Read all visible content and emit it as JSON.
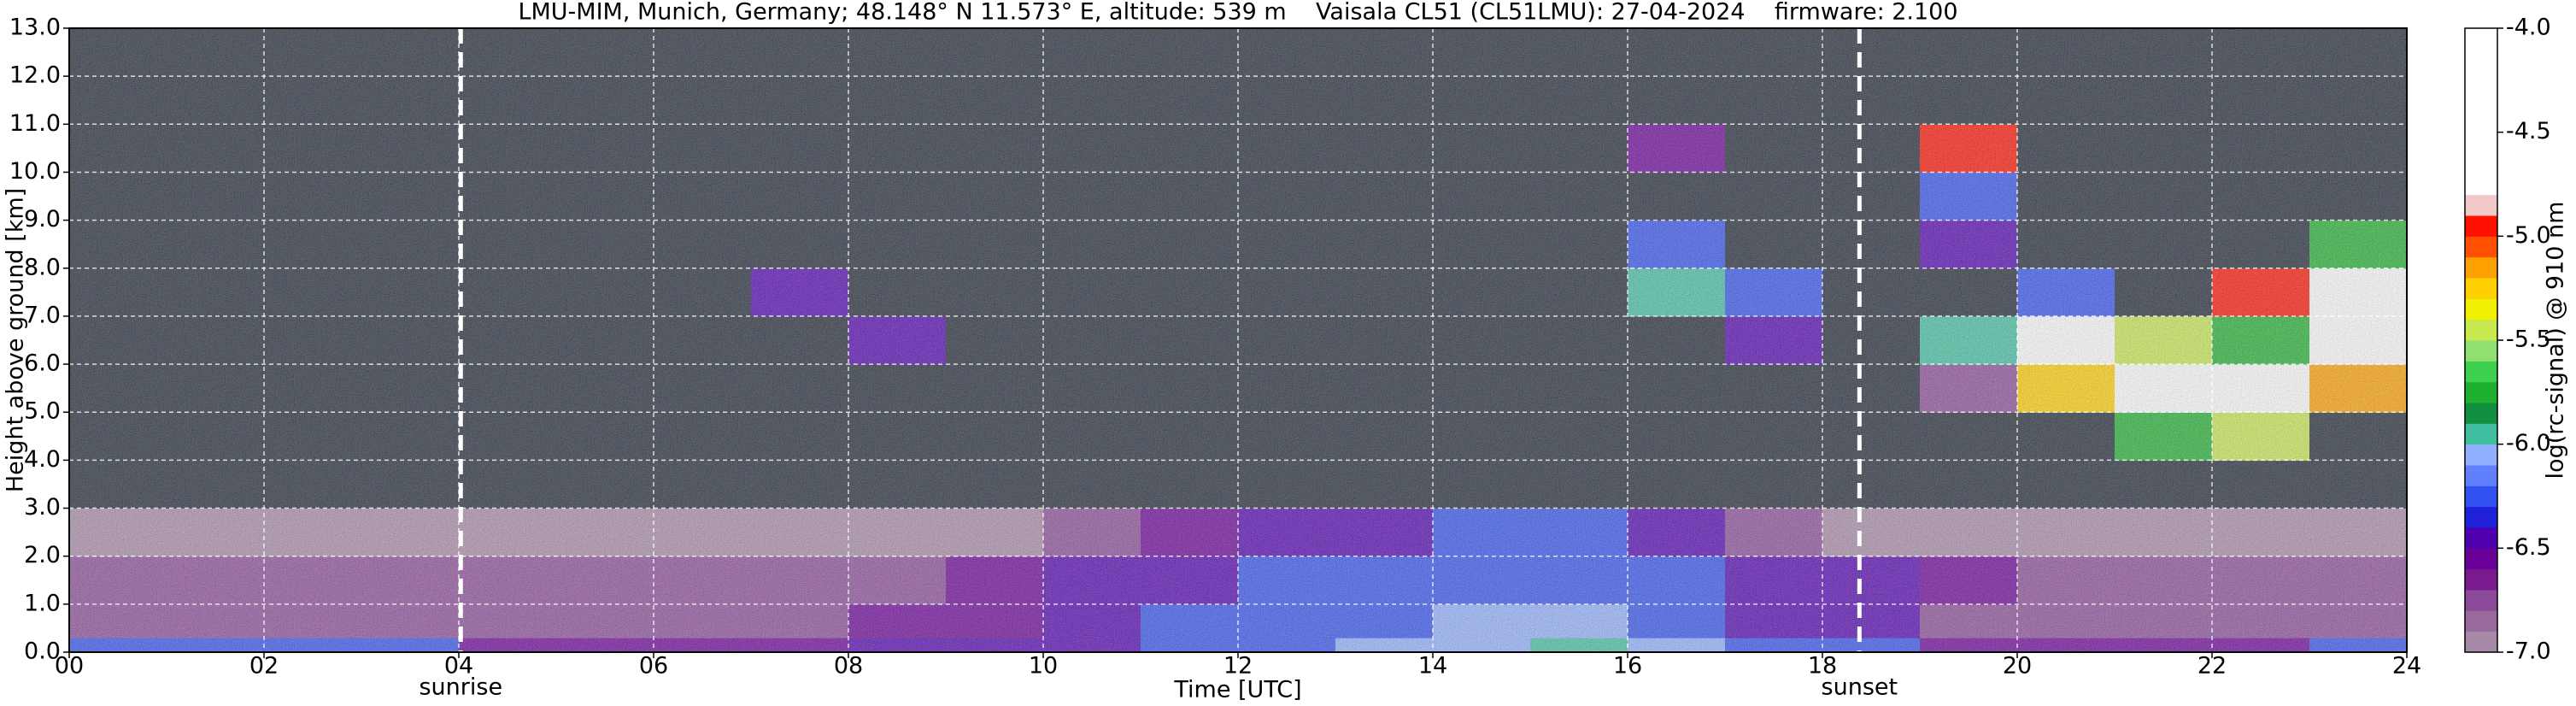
{
  "chart_data": {
    "type": "heatmap",
    "title": "LMU-MIM, Munich, Germany; 48.148° N 11.573° E, altitude: 539 m    Vaisala CL51 (CL51LMU): 27-04-2024    firmware: 2.100",
    "x_label": "Time [UTC]",
    "y_label": "Height above ground [km]",
    "colorbar_label": "log(rc-signal) @ 910 nm",
    "xlim": [
      0,
      24
    ],
    "xticks": [
      {
        "value": 0,
        "label": "00"
      },
      {
        "value": 2,
        "label": "02"
      },
      {
        "value": 4,
        "label": "04"
      },
      {
        "value": 6,
        "label": "06"
      },
      {
        "value": 8,
        "label": "08"
      },
      10,
      12,
      14,
      16,
      18,
      20,
      22,
      24
    ],
    "ylim": [
      0,
      13
    ],
    "yticks": [
      {
        "value": 0,
        "label": "0.0"
      },
      {
        "value": 1,
        "label": "1.0"
      },
      {
        "value": 2,
        "label": "2.0"
      },
      {
        "value": 3,
        "label": "3.0"
      },
      {
        "value": 4,
        "label": "4.0"
      },
      {
        "value": 5,
        "label": "5.0"
      },
      {
        "value": 6,
        "label": "6.0"
      },
      {
        "value": 7,
        "label": "7.0"
      },
      {
        "value": 8,
        "label": "8.0"
      },
      {
        "value": 9,
        "label": "9.0"
      },
      {
        "value": 10,
        "label": "10.0"
      },
      {
        "value": 11,
        "label": "11.0"
      },
      {
        "value": 12,
        "label": "12.0"
      },
      {
        "value": 13,
        "label": "13.0"
      }
    ],
    "clim": [
      -7.0,
      -4.0
    ],
    "cticks": [
      {
        "value": -7.0,
        "label": "-7.0"
      },
      -6.5,
      {
        "value": -6.0,
        "label": "-6.0"
      },
      -5.5,
      {
        "value": -5.0,
        "label": "-5.0"
      },
      -4.5,
      {
        "value": -4.0,
        "label": "-4.0"
      }
    ],
    "colormap": [
      "#a88aa8",
      "#9a6a9e",
      "#8a4a98",
      "#7a1a90",
      "#6a0098",
      "#5000b0",
      "#2020d8",
      "#3050f0",
      "#6080ff",
      "#90b0ff",
      "#40c0a0",
      "#109040",
      "#20b030",
      "#40d050",
      "#90e070",
      "#c8e850",
      "#f0f000",
      "#ffd000",
      "#ffa000",
      "#ff5000",
      "#ff1000",
      "#f0c8c8",
      "#ffffff",
      "#ffffff",
      "#ffffff",
      "#ffffff",
      "#ffffff",
      "#ffffff",
      "#ffffff",
      "#ffffff"
    ],
    "under_color": "#1e2634",
    "grid": true,
    "annotations": [
      {
        "x": 4.02,
        "text": "sunrise"
      },
      {
        "x": 18.38,
        "text": "sunset"
      }
    ],
    "xbins": [
      0,
      1,
      2,
      3,
      4,
      5,
      6,
      7,
      8,
      9,
      10,
      11,
      12,
      13,
      14,
      15,
      16,
      17,
      18,
      19,
      20,
      21,
      22,
      23,
      24
    ],
    "ybins": [
      0,
      0.3,
      1,
      2,
      3,
      4,
      5,
      6,
      7,
      8,
      9,
      10,
      11,
      13
    ],
    "z": [
      [
        -6.3,
        -6.3,
        -6.3,
        -6.3,
        -6.6,
        -6.6,
        -6.6,
        -6.6,
        -6.4,
        -6.4,
        -6.4,
        -6.3,
        -6.2,
        -6.1,
        -6.1,
        -6.0,
        -6.1,
        -6.2,
        -6.3,
        -6.6,
        -6.6,
        -6.6,
        -6.6,
        -6.2
      ],
      [
        -6.7,
        -6.7,
        -6.7,
        -6.7,
        -6.7,
        -6.7,
        -6.7,
        -6.7,
        -6.6,
        -6.6,
        -6.5,
        -6.3,
        -6.2,
        -6.2,
        -6.1,
        -6.1,
        -6.3,
        -6.4,
        -6.5,
        -6.7,
        -6.7,
        -6.7,
        -6.7,
        -6.7
      ],
      [
        -6.8,
        -6.8,
        -6.8,
        -6.8,
        -6.8,
        -6.8,
        -6.8,
        -6.8,
        -6.7,
        -6.6,
        -6.5,
        -6.4,
        -6.3,
        -6.3,
        -6.2,
        -6.2,
        -6.3,
        -6.4,
        -6.5,
        -6.6,
        -6.8,
        -6.8,
        -6.8,
        -6.8
      ],
      [
        -6.9,
        -6.9,
        -6.9,
        -6.9,
        -6.9,
        -6.9,
        -6.9,
        -6.9,
        -6.9,
        -6.9,
        -6.8,
        -6.6,
        -6.4,
        -6.5,
        -6.3,
        -6.3,
        -6.5,
        -6.8,
        -6.9,
        -6.9,
        -6.9,
        -6.9,
        -6.9,
        -6.9
      ],
      [
        -7.2,
        -7.2,
        -7.2,
        -7.2,
        -7.2,
        -7.2,
        -7.2,
        -7.2,
        -7.2,
        -7.2,
        -7.2,
        -7.2,
        -7.2,
        -7.2,
        -7.2,
        -7.2,
        -7.2,
        -7.2,
        -7.2,
        -7.2,
        -7.2,
        -7.2,
        -7.2,
        -7.2
      ],
      [
        -7.2,
        -7.2,
        -7.2,
        -7.2,
        -7.2,
        -7.2,
        -7.2,
        -7.2,
        -7.2,
        -7.2,
        -7.2,
        -7.2,
        -7.2,
        -7.2,
        -7.2,
        -7.2,
        -7.2,
        -7.2,
        -7.2,
        -7.2,
        -7.2,
        -5.8,
        -5.5,
        -7.2
      ],
      [
        -7.2,
        -7.2,
        -7.2,
        -7.2,
        -7.2,
        -7.2,
        -7.2,
        -7.2,
        -7.2,
        -7.2,
        -7.2,
        -7.2,
        -7.2,
        -7.2,
        -7.2,
        -7.2,
        -7.2,
        -7.2,
        -7.2,
        -6.8,
        -5.3,
        -4.6,
        -4.5,
        -5.2
      ],
      [
        -7.2,
        -7.2,
        -7.2,
        -7.2,
        -7.2,
        -7.2,
        -7.2,
        -7.2,
        -6.5,
        -7.2,
        -7.2,
        -7.2,
        -7.2,
        -7.2,
        -7.2,
        -7.2,
        -7.2,
        -6.4,
        -7.2,
        -5.9,
        -4.5,
        -5.5,
        -5.8,
        -4.6
      ],
      [
        -7.2,
        -7.2,
        -7.2,
        -7.2,
        -7.2,
        -7.2,
        -7.2,
        -6.5,
        -7.2,
        -7.2,
        -7.2,
        -7.2,
        -7.2,
        -7.2,
        -7.2,
        -7.2,
        -5.9,
        -6.2,
        -7.2,
        -7.2,
        -6.3,
        -7.2,
        -5.0,
        -4.6
      ],
      [
        -7.2,
        -7.2,
        -7.2,
        -7.2,
        -7.2,
        -7.2,
        -7.2,
        -7.2,
        -7.2,
        -7.2,
        -7.2,
        -7.2,
        -7.2,
        -7.2,
        -7.2,
        -7.2,
        -6.3,
        -7.2,
        -7.2,
        -6.5,
        -7.2,
        -7.2,
        -7.2,
        -5.8
      ],
      [
        -7.2,
        -7.2,
        -7.2,
        -7.2,
        -7.2,
        -7.2,
        -7.2,
        -7.2,
        -7.2,
        -7.2,
        -7.2,
        -7.2,
        -7.2,
        -7.2,
        -7.2,
        -7.2,
        -7.2,
        -7.2,
        -7.2,
        -6.3,
        -7.2,
        -7.2,
        -7.2,
        -7.2
      ],
      [
        -7.2,
        -7.2,
        -7.2,
        -7.2,
        -7.2,
        -7.2,
        -7.2,
        -7.2,
        -7.2,
        -7.2,
        -7.2,
        -7.2,
        -7.2,
        -7.2,
        -7.2,
        -7.2,
        -6.6,
        -7.2,
        -7.2,
        -5.0,
        -7.2,
        -7.2,
        -7.2,
        -7.2
      ],
      [
        -7.2,
        -7.2,
        -7.2,
        -7.2,
        -7.2,
        -7.2,
        -7.2,
        -7.2,
        -7.2,
        -7.2,
        -7.2,
        -7.2,
        -7.2,
        -7.2,
        -7.2,
        -7.2,
        -7.2,
        -7.2,
        -7.2,
        -7.2,
        -7.2,
        -7.2,
        -7.2,
        -7.2
      ]
    ]
  }
}
